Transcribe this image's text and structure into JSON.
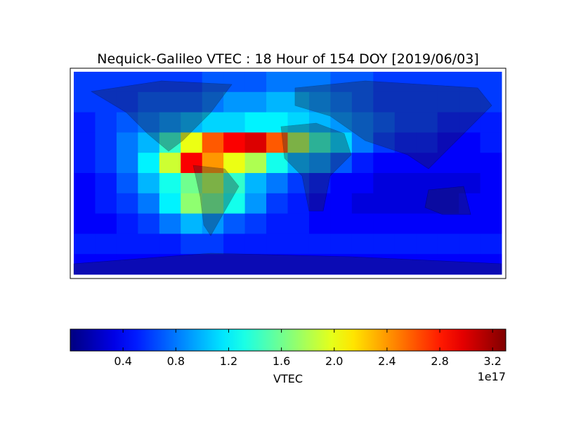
{
  "chart_data": {
    "type": "heatmap",
    "title": "Nequick-Galileo VTEC : 18 Hour of 154 DOY [2019/06/03]",
    "colormap": "jet",
    "clim": [
      0,
      3.3
    ],
    "colorbar_label": "VTEC",
    "colorbar_offset": "1e17",
    "colorbar_ticks": [
      0.4,
      0.8,
      1.2,
      1.6,
      {
        "value": 2,
        "label": "2.0"
      },
      2.4,
      2.8,
      3.2
    ],
    "values": [
      [
        0.6,
        0.6,
        0.6,
        0.6,
        0.6,
        0.6,
        0.7,
        0.7,
        0.7,
        0.8,
        0.8,
        0.8,
        0.7,
        0.7,
        0.6,
        0.6,
        0.6,
        0.6,
        0.6,
        0.6
      ],
      [
        0.6,
        0.6,
        0.6,
        0.7,
        0.7,
        0.7,
        0.8,
        0.9,
        0.9,
        1.0,
        1.0,
        0.9,
        0.8,
        0.7,
        0.6,
        0.6,
        0.6,
        0.6,
        0.6,
        0.6
      ],
      [
        0.5,
        0.6,
        0.7,
        0.8,
        0.9,
        1.0,
        1.1,
        1.1,
        1.2,
        1.2,
        1.1,
        1.0,
        0.9,
        0.8,
        0.7,
        0.6,
        0.6,
        0.5,
        0.5,
        0.5
      ],
      [
        0.5,
        0.6,
        0.8,
        1.0,
        1.4,
        2.0,
        2.6,
        2.9,
        3.0,
        2.6,
        1.8,
        1.4,
        1.1,
        0.8,
        0.6,
        0.5,
        0.5,
        0.4,
        0.4,
        0.5
      ],
      [
        0.5,
        0.6,
        0.8,
        1.2,
        1.9,
        2.9,
        2.4,
        2.0,
        1.8,
        1.3,
        1.0,
        0.9,
        0.7,
        0.5,
        0.4,
        0.4,
        0.4,
        0.4,
        0.4,
        0.4
      ],
      [
        0.4,
        0.5,
        0.7,
        1.0,
        1.3,
        1.6,
        1.8,
        1.4,
        1.0,
        0.8,
        0.6,
        0.5,
        0.4,
        0.4,
        0.3,
        0.3,
        0.3,
        0.3,
        0.3,
        0.4
      ],
      [
        0.4,
        0.5,
        0.6,
        0.8,
        1.2,
        1.7,
        1.6,
        1.3,
        0.9,
        0.6,
        0.5,
        0.4,
        0.4,
        0.3,
        0.3,
        0.3,
        0.3,
        0.3,
        0.4,
        0.4
      ],
      [
        0.4,
        0.4,
        0.5,
        0.6,
        0.8,
        1.0,
        0.9,
        0.7,
        0.6,
        0.5,
        0.5,
        0.4,
        0.4,
        0.4,
        0.4,
        0.4,
        0.4,
        0.4,
        0.4,
        0.4
      ],
      [
        0.5,
        0.5,
        0.5,
        0.5,
        0.5,
        0.6,
        0.6,
        0.5,
        0.5,
        0.5,
        0.5,
        0.5,
        0.5,
        0.5,
        0.5,
        0.5,
        0.5,
        0.5,
        0.5,
        0.5
      ],
      [
        0.4,
        0.4,
        0.4,
        0.4,
        0.4,
        0.4,
        0.4,
        0.4,
        0.4,
        0.4,
        0.4,
        0.4,
        0.4,
        0.4,
        0.4,
        0.4,
        0.4,
        0.4,
        0.4,
        0.4
      ]
    ]
  }
}
